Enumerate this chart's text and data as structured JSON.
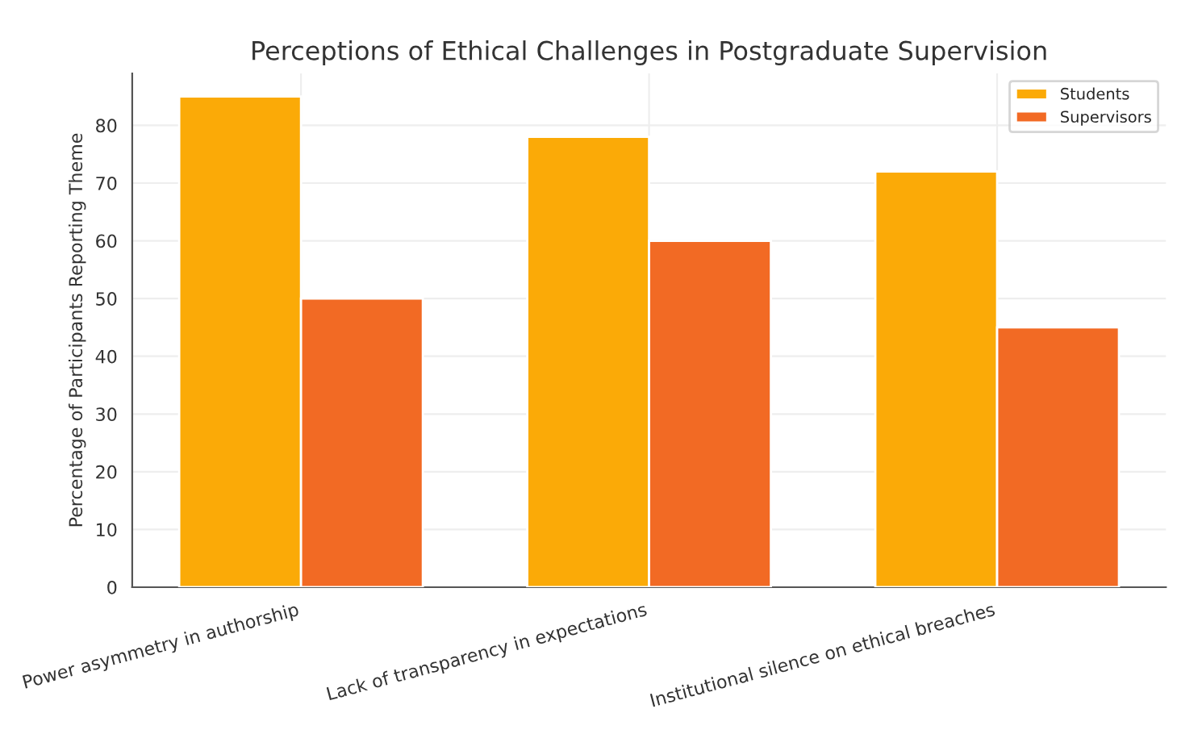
{
  "chart_data": {
    "type": "bar",
    "title": "Perceptions of Ethical Challenges in Postgraduate Supervision",
    "ylabel": "Percentage of Participants Reporting Theme",
    "categories": [
      "Power asymmetry in authorship",
      "Lack of transparency in expectations",
      "Institutional silence on ethical breaches"
    ],
    "series": [
      {
        "name": "Students",
        "color": "#fbaa07",
        "values": [
          85,
          78,
          72
        ]
      },
      {
        "name": "Supervisors",
        "color": "#f26a24",
        "values": [
          50,
          60,
          45
        ]
      }
    ],
    "ylim": [
      0,
      89
    ],
    "yticks": [
      0,
      10,
      20,
      30,
      40,
      50,
      60,
      70,
      80
    ],
    "grid": true,
    "legend": "top right"
  }
}
